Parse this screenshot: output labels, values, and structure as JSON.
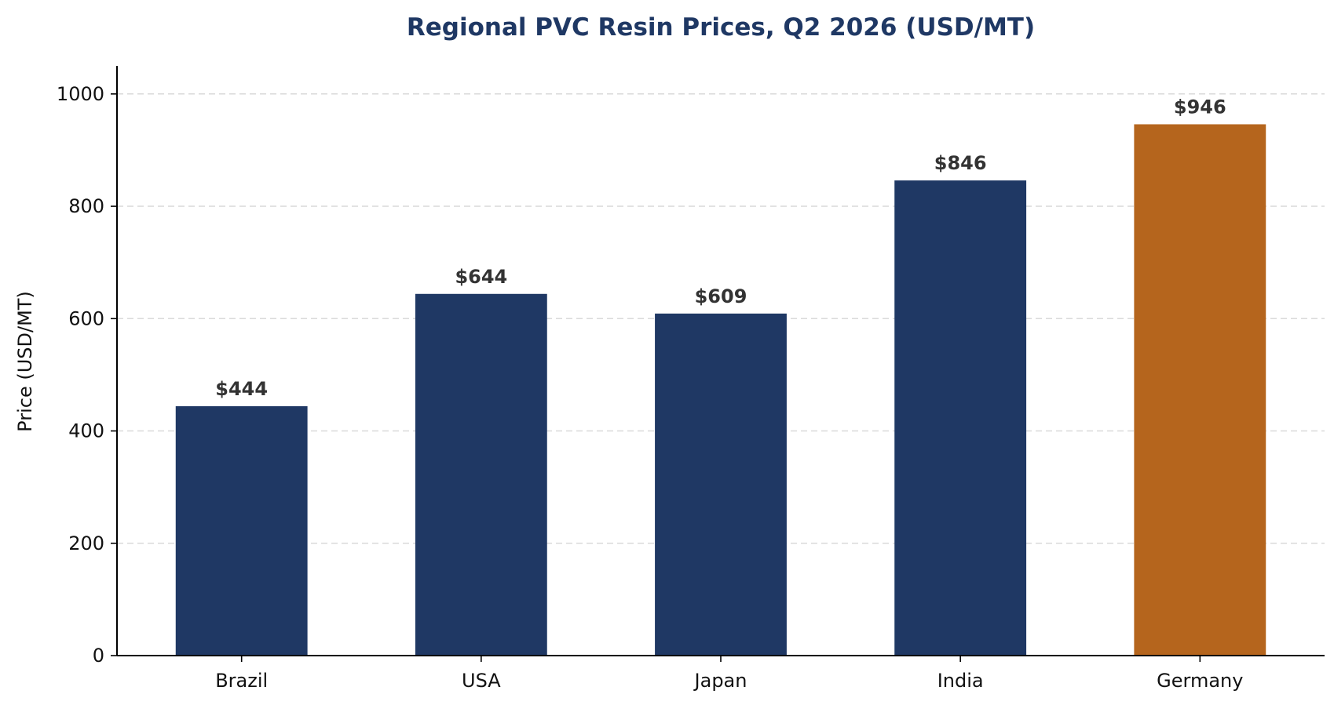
{
  "chart_data": {
    "type": "bar",
    "title": "Regional PVC Resin Prices, Q2 2026 (USD/MT)",
    "xlabel": "",
    "ylabel": "Price (USD/MT)",
    "categories": [
      "Brazil",
      "USA",
      "Japan",
      "India",
      "Germany"
    ],
    "values": [
      444,
      644,
      609,
      846,
      946
    ],
    "data_labels": [
      "$444",
      "$644",
      "$609",
      "$846",
      "$946"
    ],
    "ylim": [
      0,
      1050
    ],
    "yticks": [
      0,
      200,
      400,
      600,
      800,
      1000
    ],
    "grid": "horizontal-dashed",
    "legend": "none",
    "colors": {
      "default": "#1f3864",
      "highlight": "#b5651d",
      "title": "#1f3864"
    },
    "highlight_index": 4
  }
}
